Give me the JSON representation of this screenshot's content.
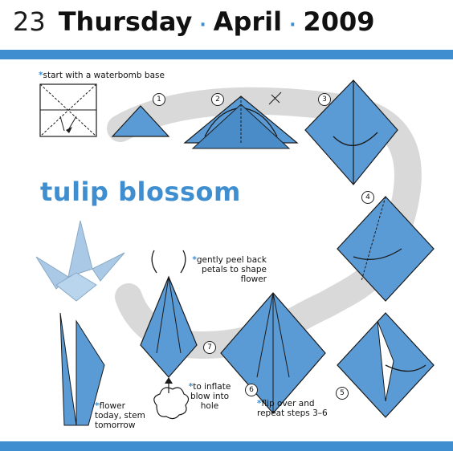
{
  "header": {
    "day_number": "23",
    "weekday": "Thursday",
    "separator": "·",
    "month": "April",
    "year": "2009"
  },
  "title": "tulip blossom",
  "notes": {
    "start": "start with a waterbomb base",
    "peel_line1": "gently peel back",
    "peel_line2": "petals to shape",
    "peel_line3": "flower",
    "inflate_line1": "to inflate",
    "inflate_line2": "blow into",
    "inflate_line3": "hole",
    "flip_line1": "flip over and",
    "flip_line2": "repeat steps 3–6",
    "stem_line1": "flower",
    "stem_line2": "today, stem",
    "stem_line3": "tomorrow",
    "asterisk": "*"
  },
  "steps": [
    "1",
    "2",
    "3",
    "4",
    "5",
    "6",
    "7"
  ],
  "colors": {
    "accent_blue": "#3f8fd0",
    "paper_blue": "#5b9bd5",
    "paper_light": "#a9c9e6",
    "track_gray": "#d9d9d9",
    "line": "#1a1a1a"
  }
}
